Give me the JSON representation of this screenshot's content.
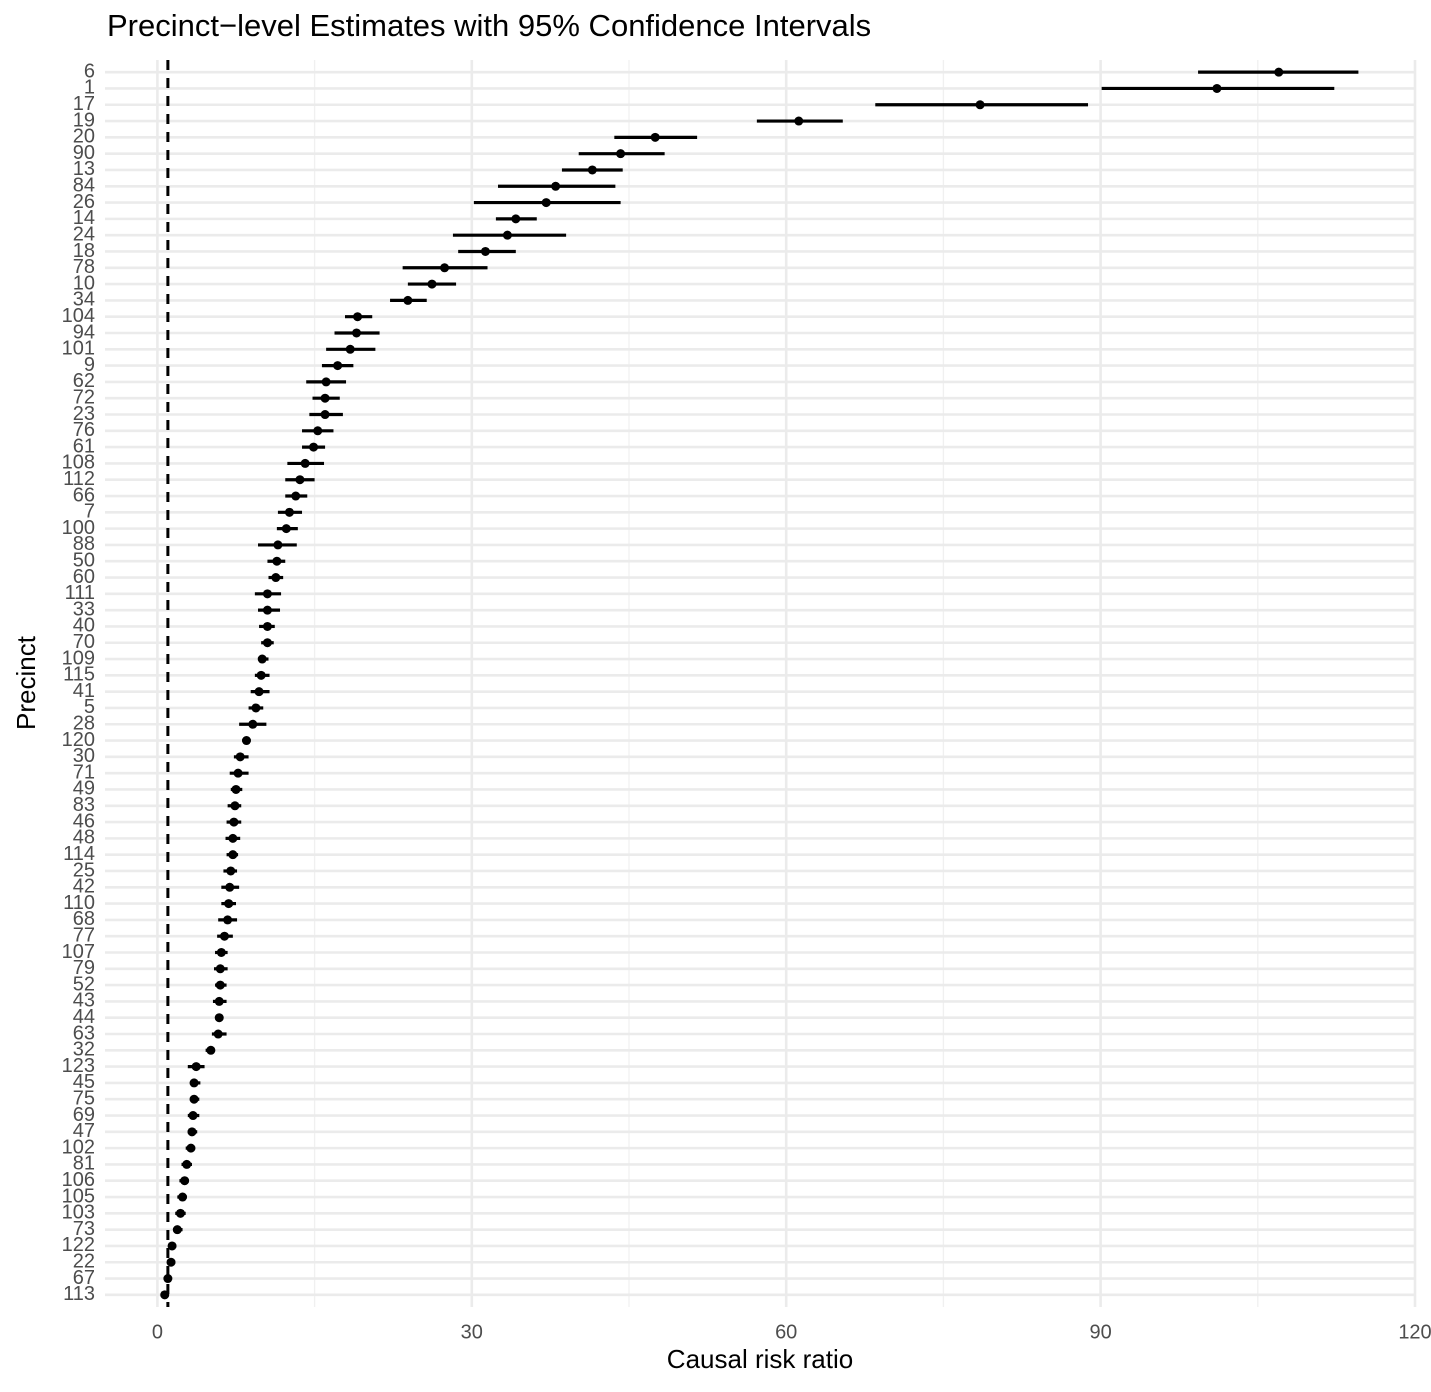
{
  "chart_data": {
    "type": "forest",
    "title": "Precinct−level Estimates with 95% Confidence Intervals",
    "xlabel": "Causal risk ratio",
    "ylabel": "Precinct",
    "categories": [
      "6",
      "1",
      "17",
      "19",
      "20",
      "90",
      "13",
      "84",
      "26",
      "14",
      "24",
      "18",
      "78",
      "10",
      "34",
      "104",
      "94",
      "101",
      "9",
      "62",
      "72",
      "23",
      "76",
      "61",
      "108",
      "112",
      "66",
      "7",
      "100",
      "88",
      "50",
      "60",
      "111",
      "33",
      "40",
      "70",
      "109",
      "115",
      "41",
      "5",
      "28",
      "120",
      "30",
      "71",
      "49",
      "83",
      "46",
      "48",
      "114",
      "25",
      "42",
      "110",
      "68",
      "77",
      "107",
      "79",
      "52",
      "43",
      "44",
      "63",
      "32",
      "123",
      "45",
      "75",
      "69",
      "47",
      "102",
      "81",
      "106",
      "105",
      "103",
      "73",
      "122",
      "22",
      "67",
      "113"
    ],
    "values": [
      107.0,
      101.1,
      78.5,
      61.2,
      47.5,
      44.2,
      41.5,
      38.0,
      37.1,
      34.2,
      33.4,
      31.3,
      27.4,
      26.2,
      23.9,
      19.1,
      19.0,
      18.4,
      17.2,
      16.1,
      16.0,
      16.0,
      15.3,
      14.9,
      14.1,
      13.6,
      13.2,
      12.6,
      12.3,
      11.5,
      11.4,
      11.3,
      10.5,
      10.5,
      10.5,
      10.5,
      10.0,
      9.9,
      9.7,
      9.4,
      9.1,
      8.5,
      7.9,
      7.7,
      7.5,
      7.4,
      7.3,
      7.2,
      7.2,
      7.0,
      6.9,
      6.8,
      6.7,
      6.4,
      6.1,
      6.0,
      6.0,
      5.9,
      5.9,
      5.8,
      5.1,
      3.7,
      3.5,
      3.5,
      3.4,
      3.3,
      3.2,
      2.8,
      2.6,
      2.4,
      2.2,
      1.9,
      1.4,
      1.3,
      1.0,
      0.7
    ],
    "ci_low": [
      99.3,
      90.1,
      68.5,
      57.2,
      43.6,
      40.2,
      38.6,
      32.5,
      30.2,
      32.3,
      28.2,
      28.7,
      23.4,
      23.9,
      22.2,
      17.9,
      16.9,
      16.1,
      15.7,
      14.2,
      14.8,
      14.5,
      13.8,
      13.8,
      12.4,
      12.2,
      12.2,
      11.5,
      11.4,
      9.6,
      10.5,
      10.6,
      9.3,
      9.6,
      9.7,
      9.9,
      9.6,
      9.3,
      8.9,
      8.7,
      7.8,
      8.1,
      7.3,
      6.9,
      7.0,
      6.7,
      6.6,
      6.5,
      6.6,
      6.3,
      6.1,
      6.1,
      5.8,
      5.7,
      5.5,
      5.4,
      5.5,
      5.3,
      5.5,
      5.2,
      4.6,
      2.9,
      3.1,
      3.1,
      2.9,
      2.9,
      2.7,
      2.3,
      2.1,
      1.9,
      1.7,
      1.5,
      1.1,
      1.0,
      0.6,
      0.3
    ],
    "ci_high": [
      114.6,
      112.3,
      88.8,
      65.4,
      51.5,
      48.4,
      44.4,
      43.7,
      44.2,
      36.2,
      39.0,
      34.2,
      31.5,
      28.5,
      25.7,
      20.5,
      21.2,
      20.8,
      18.7,
      18.0,
      17.4,
      17.7,
      16.8,
      16.0,
      15.9,
      15.0,
      14.3,
      13.8,
      13.4,
      13.3,
      12.2,
      12.0,
      11.8,
      11.7,
      11.2,
      11.1,
      10.6,
      10.7,
      10.7,
      10.1,
      10.4,
      8.9,
      8.7,
      8.7,
      8.1,
      8.0,
      8.0,
      7.9,
      7.7,
      7.6,
      7.8,
      7.5,
      7.6,
      7.2,
      6.7,
      6.7,
      6.6,
      6.6,
      6.3,
      6.6,
      5.5,
      4.5,
      4.1,
      4.0,
      4.0,
      3.8,
      3.6,
      3.3,
      3.0,
      2.8,
      2.7,
      2.4,
      1.8,
      1.7,
      1.2,
      1.0
    ],
    "color": "#000000",
    "reference_line": 1,
    "xlim": [
      -5,
      120
    ],
    "xticks": [
      0,
      30,
      60,
      90,
      120
    ],
    "grid": true
  }
}
